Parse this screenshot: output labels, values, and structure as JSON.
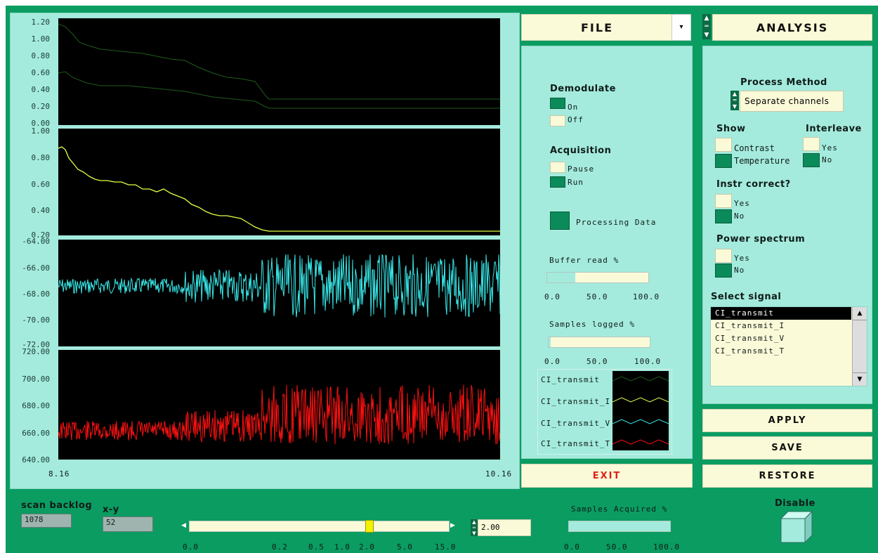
{
  "plots": {
    "p1": {
      "ticks": [
        "1.20",
        "1.00",
        "0.80",
        "0.60",
        "0.40",
        "0.20",
        "0.00"
      ]
    },
    "p2": {
      "ticks": [
        "1.00",
        "0.80",
        "0.60",
        "0.40",
        "0.20"
      ]
    },
    "p3": {
      "ticks": [
        "-64.00",
        "-66.00",
        "-68.00",
        "-70.00",
        "-72.00"
      ]
    },
    "p4": {
      "ticks": [
        "720.00",
        "700.00",
        "680.00",
        "660.00",
        "640.00"
      ]
    },
    "x_start": "8.16",
    "x_end": "10.16",
    "colors": {
      "p1": "#1e5c1a",
      "p2": "#e8ff44",
      "p3": "#39e9ea",
      "p4": "#ff1111"
    }
  },
  "file": {
    "label": "FILE"
  },
  "analysis": {
    "label": "ANALYSIS"
  },
  "controls": {
    "demodulate": {
      "title": "Demodulate",
      "on": "On",
      "off": "Off"
    },
    "acquisition": {
      "title": "Acquisition",
      "pause": "Pause",
      "run": "Run"
    },
    "processing": "Processing Data",
    "buffer": {
      "title": "Buffer read %",
      "ticks": [
        "0.0",
        "50.0",
        "100.0"
      ],
      "value": 28
    },
    "samples_logged": {
      "title": "Samples logged %",
      "ticks": [
        "0.0",
        "50.0",
        "100.0"
      ],
      "value": 2
    }
  },
  "legend": [
    {
      "name": "CI_transmit",
      "color": "#1e5c1a"
    },
    {
      "name": "CI_transmit_I",
      "color": "#e8ff44"
    },
    {
      "name": "CI_transmit_V",
      "color": "#39e9ea"
    },
    {
      "name": "CI_transmit_T",
      "color": "#ff1111"
    }
  ],
  "analysis_panel": {
    "process_method": {
      "title": "Process Method",
      "value": "Separate channels"
    },
    "show": {
      "title": "Show",
      "contrast": "Contrast",
      "temperature": "Temperature"
    },
    "interleave": {
      "title": "Interleave",
      "yes": "Yes",
      "no": "No"
    },
    "instr": {
      "title": "Instr correct?",
      "yes": "Yes",
      "no": "No"
    },
    "power": {
      "title": "Power spectrum",
      "yes": "Yes",
      "no": "No"
    },
    "select_signal": {
      "title": "Select signal",
      "items": [
        "CI_transmit",
        "CI_transmit_I",
        "CI_transmit_V",
        "CI_transmit_T"
      ]
    }
  },
  "buttons": {
    "apply": "APPLY",
    "save": "SAVE",
    "restore": "RESTORE",
    "exit": "EXIT"
  },
  "bottom": {
    "scan_backlog": {
      "title": "scan backlog",
      "value": "1078"
    },
    "xy": {
      "title": "x-y",
      "value": "52"
    },
    "zoom": {
      "ticks": [
        "0.0",
        "0.2",
        "0.5",
        "1.0",
        "2.0",
        "5.0",
        "15.0"
      ],
      "value": "2.00"
    },
    "samples_acquired": {
      "title": "Samples Acquired %",
      "ticks": [
        "0.0",
        "50.0",
        "100.0"
      ]
    },
    "disable": "Disable"
  }
}
